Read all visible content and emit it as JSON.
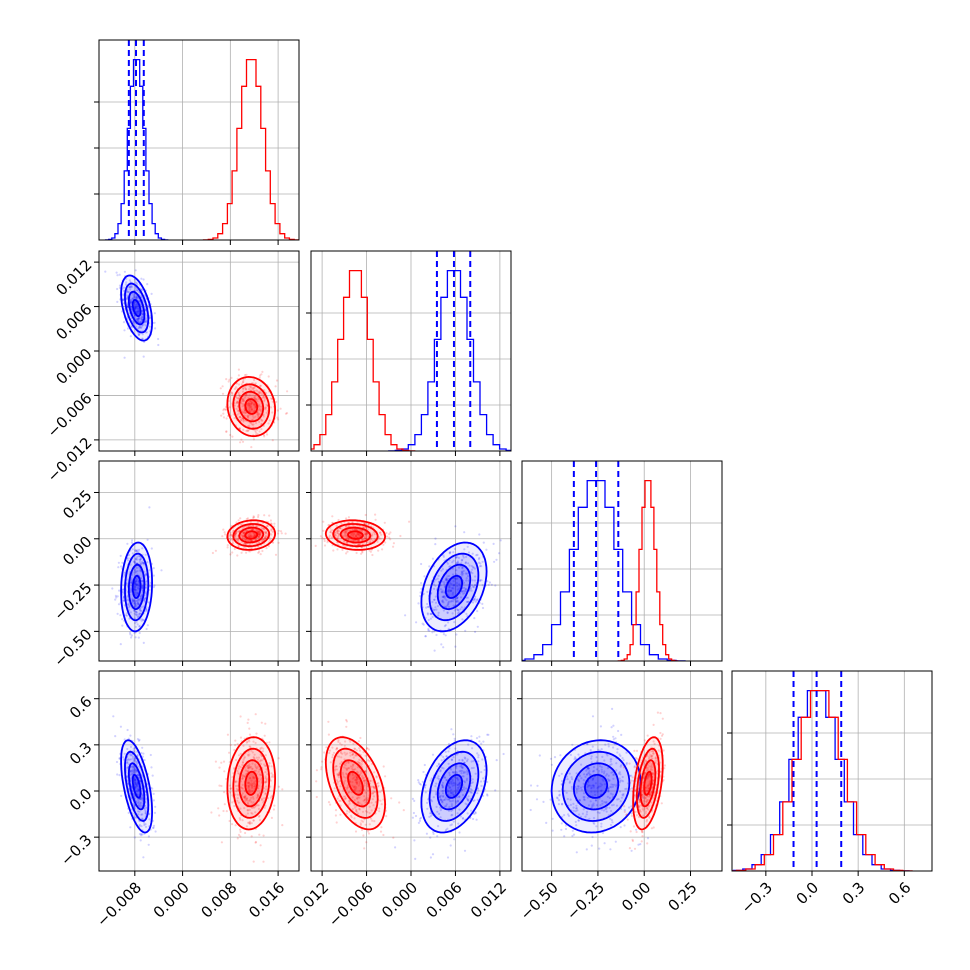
{
  "colors": {
    "blue": "#0000ff",
    "red": "#ff0000",
    "grid": "#b0b0b0"
  },
  "chart_data": {
    "type": "corner",
    "description_parameters": 4,
    "series": [
      {
        "color": "blue",
        "p0": {
          "mean": -0.0077,
          "std": 0.0013,
          "q16": -0.009,
          "q50": -0.0078,
          "q84": -0.0065
        },
        "p1": {
          "mean": 0.0058,
          "std": 0.0022,
          "q16": 0.0035,
          "q50": 0.0058,
          "q84": 0.008
        },
        "p2": {
          "mean": -0.26,
          "std": 0.12,
          "q16": -0.38,
          "q50": -0.26,
          "q84": -0.14
        },
        "p3": {
          "mean": 0.03,
          "std": 0.15,
          "q16": -0.12,
          "q50": 0.03,
          "q84": 0.19
        },
        "corr": [
          [
            1,
            -0.45,
            0.1,
            -0.55
          ],
          [
            -0.45,
            1,
            0.35,
            0.35
          ],
          [
            0.1,
            0.35,
            1,
            0.1
          ],
          [
            -0.55,
            0.35,
            0.1,
            1
          ]
        ]
      },
      {
        "color": "red",
        "p0": {
          "mean": 0.0115,
          "std": 0.002
        },
        "p1": {
          "mean": -0.0075,
          "std": 0.002
        },
        "p2": {
          "mean": 0.02,
          "std": 0.04
        },
        "p3": {
          "mean": 0.05,
          "std": 0.15
        },
        "corr": [
          [
            1,
            -0.1,
            0.1,
            0.1
          ],
          [
            -0.1,
            1,
            -0.1,
            -0.45
          ],
          [
            0.1,
            -0.1,
            1,
            0.4
          ],
          [
            0.1,
            -0.45,
            0.4,
            1
          ]
        ]
      }
    ],
    "axes": {
      "p0": {
        "range": [
          -0.014,
          0.0195
        ],
        "ticks": [
          -0.008,
          0.0,
          0.008,
          0.016
        ],
        "tick_labels": [
          "−0.008",
          "0.000",
          "0.008",
          "0.016"
        ]
      },
      "p1": {
        "range": [
          -0.0135,
          0.0135
        ],
        "ticks": [
          -0.012,
          -0.006,
          0.0,
          0.006,
          0.012
        ],
        "tick_labels": [
          "−0.012",
          "−0.006",
          "0.000",
          "0.006",
          "0.012"
        ]
      },
      "p2": {
        "range": [
          -0.66,
          0.42
        ],
        "ticks": [
          -0.5,
          -0.25,
          0.0,
          0.25
        ],
        "tick_labels": [
          "−0.50",
          "−0.25",
          "0.00",
          "0.25"
        ]
      },
      "p3": {
        "range": [
          -0.52,
          0.78
        ],
        "ticks": [
          -0.3,
          0.0,
          0.3,
          0.6
        ],
        "tick_labels": [
          "−0.3",
          "0.0",
          "0.3",
          "0.6"
        ]
      }
    },
    "grid": true
  }
}
